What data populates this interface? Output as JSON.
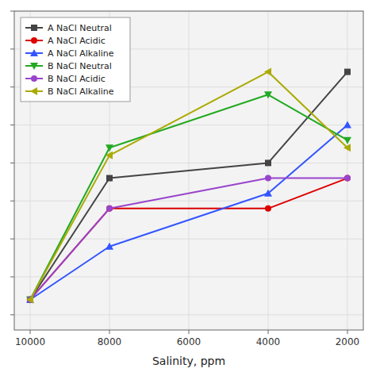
{
  "chart_data": {
    "type": "line",
    "x_label": "Salinity, ppm",
    "x": [
      10000,
      8000,
      4000,
      2000
    ],
    "series": [
      {
        "name": "A NaCl Neutral",
        "color": "#444444",
        "marker": "square",
        "values": [
          -38,
          -22,
          -20,
          -8
        ]
      },
      {
        "name": "A NaCl Acidic",
        "color": "#dd0000",
        "marker": "circle",
        "values": [
          -38,
          -26,
          -26,
          -22
        ]
      },
      {
        "name": "A NaCl Alkaline",
        "color": "#3355ff",
        "marker": "triangle-up",
        "values": [
          -38,
          -31,
          -24,
          -15
        ]
      },
      {
        "name": "B NaCl Neutral",
        "color": "#22aa22",
        "marker": "triangle-down",
        "values": [
          -38,
          -18,
          -11,
          -17
        ]
      },
      {
        "name": "B NaCl Acidic",
        "color": "#9944cc",
        "marker": "circle",
        "values": [
          -38,
          -26,
          -22,
          -22
        ]
      },
      {
        "name": "B NaCl Alkaline",
        "color": "#aaaa00",
        "marker": "triangle-left",
        "values": [
          -38,
          -19,
          -8,
          -18
        ]
      }
    ],
    "xlim": [
      10400,
      1600
    ],
    "xticks": [
      10000,
      8000,
      6000,
      4000,
      2000
    ],
    "ylim": [
      -42,
      0
    ],
    "yticks": [
      -40,
      -35,
      -30,
      -25,
      -20,
      -15,
      -10,
      -5,
      0
    ],
    "tick_labels": "x",
    "grid": true,
    "legend": "upper left"
  }
}
